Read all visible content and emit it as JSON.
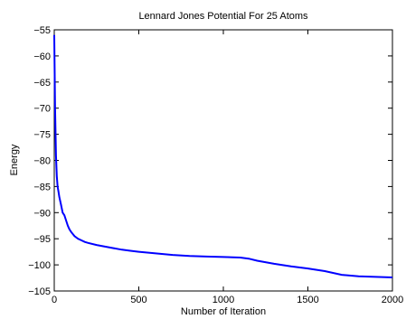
{
  "chart_data": {
    "type": "line",
    "title": "Lennard Jones Potential For 25 Atoms",
    "xlabel": "Number of Iteration",
    "ylabel": "Energy",
    "xlim": [
      0,
      2000
    ],
    "ylim": [
      -105,
      -55
    ],
    "xticks": [
      0,
      500,
      1000,
      1500,
      2000
    ],
    "yticks": [
      -55,
      -60,
      -65,
      -70,
      -75,
      -80,
      -85,
      -90,
      -95,
      -100,
      -105
    ],
    "grid": false,
    "legend": "none",
    "series": [
      {
        "color": "#0000ff",
        "x": [
          0,
          5,
          10,
          15,
          20,
          25,
          30,
          40,
          50,
          60,
          70,
          80,
          90,
          100,
          120,
          140,
          160,
          180,
          200,
          250,
          300,
          350,
          400,
          450,
          500,
          600,
          700,
          800,
          900,
          1000,
          1100,
          1150,
          1200,
          1300,
          1400,
          1500,
          1600,
          1700,
          1800,
          1900,
          2000
        ],
        "y": [
          -56,
          -70,
          -79,
          -83,
          -85,
          -86,
          -87,
          -88.5,
          -90,
          -90.5,
          -91.5,
          -92.5,
          -93.2,
          -93.7,
          -94.5,
          -95,
          -95.3,
          -95.6,
          -95.8,
          -96.2,
          -96.5,
          -96.8,
          -97.1,
          -97.3,
          -97.5,
          -97.8,
          -98.1,
          -98.3,
          -98.4,
          -98.5,
          -98.6,
          -98.8,
          -99.2,
          -99.8,
          -100.3,
          -100.7,
          -101.2,
          -101.9,
          -102.2,
          -102.3,
          -102.4
        ]
      }
    ]
  }
}
